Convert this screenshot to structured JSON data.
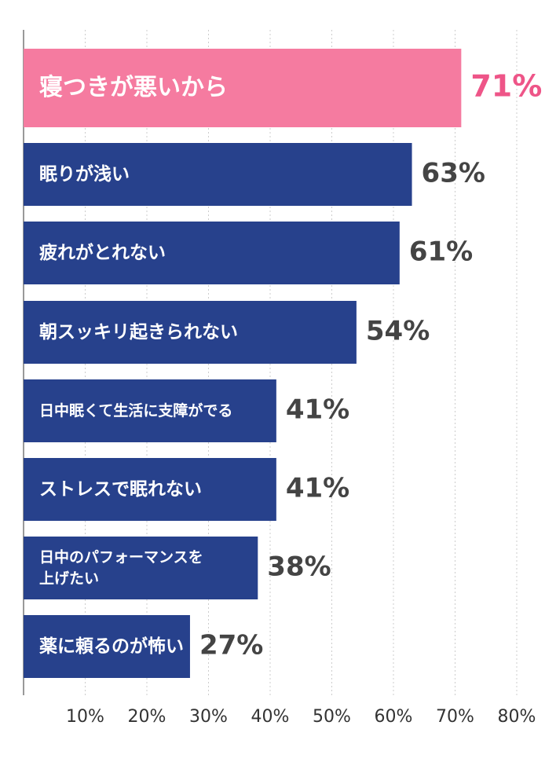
{
  "chart_data": {
    "type": "bar",
    "orientation": "horizontal",
    "categories": [
      "寝つきが悪いから",
      "眠りが浅い",
      "疲れがとれない",
      "朝スッキリ起きられない",
      "日中眠くて生活に支障がでる",
      "ストレスで眠れない",
      "日中のパフォーマンスを上げたい",
      "薬に頼るのが怖い"
    ],
    "values": [
      71,
      63,
      61,
      54,
      41,
      41,
      38,
      27
    ],
    "value_labels": [
      "71%",
      "63%",
      "61%",
      "54%",
      "41%",
      "41%",
      "38%",
      "27%"
    ],
    "label_lines": [
      [
        "寝つきが悪いから"
      ],
      [
        "眠りが浅い"
      ],
      [
        "疲れがとれない"
      ],
      [
        "朝スッキリ起きられない"
      ],
      [
        "日中眠くて生活に支障がでる"
      ],
      [
        "ストレスで眠れない"
      ],
      [
        "日中のパフォーマンスを",
        "上げたい"
      ],
      [
        "薬に頼るのが怖い"
      ]
    ],
    "highlight_index": 0,
    "xlim": [
      0,
      80
    ],
    "x_ticks": [
      10,
      20,
      30,
      40,
      50,
      60,
      70,
      80
    ],
    "x_tick_labels": [
      "10%",
      "20%",
      "30%",
      "40%",
      "50%",
      "60%",
      "70%",
      "80%"
    ],
    "grid": true,
    "title": "",
    "xlabel": "",
    "ylabel": "",
    "colors": {
      "bar": "#27418c",
      "highlight_bar": "#f57ba0",
      "highlight_value_text": "#ee5588",
      "value_text": "#444444",
      "bar_label_text": "#ffffff",
      "tick_text": "#333333",
      "grid": "#cccccc",
      "axis": "#999999"
    }
  }
}
